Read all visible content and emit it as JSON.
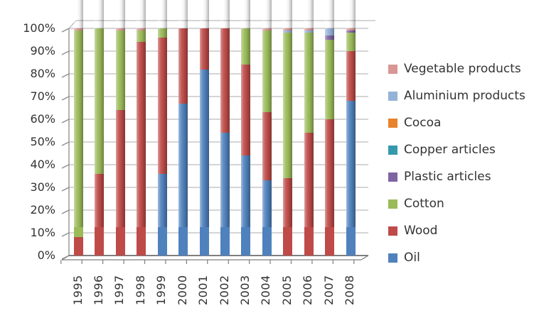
{
  "chart_data": {
    "type": "bar",
    "subtype": "stacked-100-percent",
    "title": "",
    "categories": [
      "1995",
      "1996",
      "1997",
      "1998",
      "1999",
      "2000",
      "2001",
      "2002",
      "2003",
      "2004",
      "2005",
      "2006",
      "2007",
      "2008"
    ],
    "unit": "%",
    "series": [
      {
        "name": "Oil",
        "color": "#4F81BD",
        "values": [
          0,
          0,
          0,
          0,
          36,
          67,
          82,
          54,
          44,
          33,
          0,
          0,
          0,
          68
        ]
      },
      {
        "name": "Wood",
        "color": "#BE4B48",
        "values": [
          8,
          36,
          64,
          94,
          60,
          33,
          18,
          46,
          40,
          30,
          34,
          54,
          60,
          22
        ]
      },
      {
        "name": "Cotton",
        "color": "#9BBB59",
        "values": [
          91,
          64,
          35,
          5,
          4,
          0,
          0,
          0,
          16,
          36,
          64,
          44,
          35,
          8
        ]
      },
      {
        "name": "Plastic articles",
        "color": "#8064A2",
        "values": [
          0,
          0,
          0,
          0,
          0,
          0,
          0,
          0,
          0,
          0,
          0,
          0,
          2,
          1
        ]
      },
      {
        "name": "Copper articles",
        "color": "#3599AC",
        "values": [
          0,
          0,
          0,
          0,
          0,
          0,
          0,
          0,
          0,
          0,
          0,
          0,
          0,
          0
        ]
      },
      {
        "name": "Cocoa",
        "color": "#E8822C",
        "values": [
          0,
          0,
          0,
          0,
          0,
          0,
          0,
          0,
          0,
          0,
          0,
          0,
          0,
          0
        ]
      },
      {
        "name": "Aluminium products",
        "color": "#95B3D7",
        "values": [
          0,
          0,
          0,
          0,
          0,
          0,
          0,
          0,
          0,
          0,
          1,
          1,
          3,
          0
        ]
      },
      {
        "name": "Vegetable products",
        "color": "#D99694",
        "values": [
          1,
          0,
          1,
          1,
          0,
          0,
          0,
          0,
          0,
          1,
          1,
          1,
          0,
          1
        ]
      }
    ],
    "stack_order_bottom_to_top": [
      "Oil",
      "Wood",
      "Cotton",
      "Plastic articles",
      "Copper articles",
      "Cocoa",
      "Aluminium products",
      "Vegetable products"
    ],
    "legend": {
      "position": "right",
      "order_top_to_bottom": [
        "Vegetable products",
        "Aluminium products",
        "Cocoa",
        "Copper articles",
        "Plastic articles",
        "Cotton",
        "Wood",
        "Oil"
      ]
    },
    "y_axis": {
      "ticks_top_to_bottom": [
        "100%",
        "90%",
        "80%",
        "70%",
        "60%",
        "50%",
        "40%",
        "30%",
        "20%",
        "10%",
        "0%"
      ],
      "min": 0,
      "max": 100,
      "grid": true
    },
    "x_axis": {
      "label_rotation_degrees": -90
    }
  },
  "style": {
    "gridline_color": "#ABABAB",
    "axis_line_color": "#7F7F7F",
    "axis_text_color": "#333333",
    "background_color": "#FFFFFF"
  }
}
